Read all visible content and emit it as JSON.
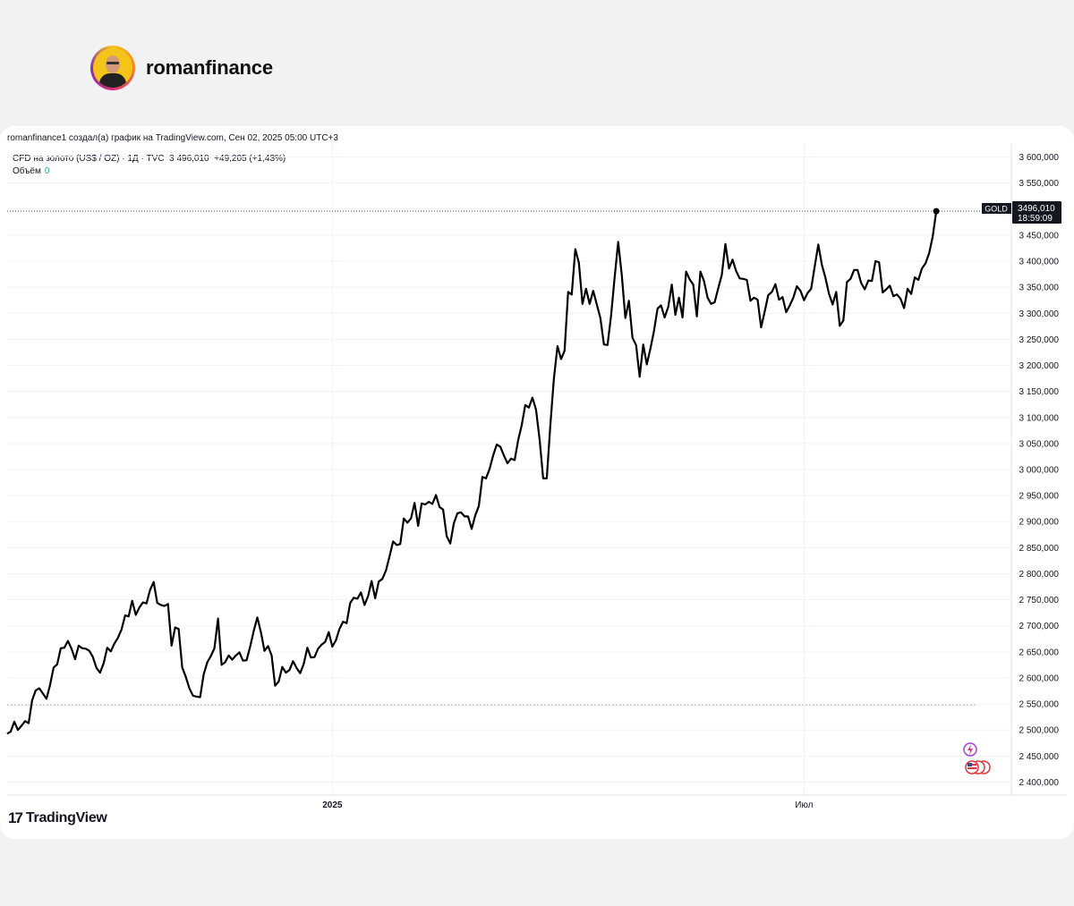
{
  "profile": {
    "name": "romanfinance"
  },
  "header": {
    "created_text": "romanfinance1 создал(а) график на TradingView.com, Сен 02, 2025 05:00 UTC+3",
    "symbol_line": "CFD на золото (US$ / OZ) · 1Д · TVC",
    "last_price": "3 496,010",
    "change": "+49,205 (+1,43%)",
    "volume_label": "Объём",
    "volume_value": "0"
  },
  "price_tag": {
    "symbol": "GOLD",
    "value": "3496,010",
    "countdown": "18:59:09"
  },
  "footer": {
    "logo_mark": "17",
    "logo_text": "TradingView"
  },
  "icons": [
    "flash-icon",
    "us-flag-icon"
  ],
  "colors": {
    "line": "#000000",
    "grid": "#f0f3fa",
    "text": "#131722",
    "ref_line": "#b2b5be",
    "volume": "#22ab94"
  },
  "chart_data": {
    "type": "line",
    "title": "CFD на золото (US$ / OZ)",
    "xlabel": "",
    "ylabel": "",
    "ylim": [
      2375000,
      3625000
    ],
    "y_ticks": [
      2400000,
      2450000,
      2500000,
      2550000,
      2600000,
      2650000,
      2700000,
      2750000,
      2800000,
      2850000,
      2900000,
      2950000,
      3000000,
      3050000,
      3100000,
      3150000,
      3200000,
      3250000,
      3300000,
      3350000,
      3400000,
      3450000,
      3500000,
      3550000,
      3600000
    ],
    "y_tick_labels": [
      "2 400,000",
      "2 450,000",
      "2 500,000",
      "2 550,000",
      "2 600,000",
      "2 650,000",
      "2 700,000",
      "2 750,000",
      "2 800,000",
      "2 850,000",
      "2 900,000",
      "2 950,000",
      "3 000,000",
      "3 050,000",
      "3 100,000",
      "3 150,000",
      "3 200,000",
      "3 250,000",
      "3 300,000",
      "3 350,000",
      "3 400,000",
      "3 450,000",
      "3 500,000",
      "3 550,000",
      "3 600,000"
    ],
    "x_range": [
      0,
      271
    ],
    "x_ticks": [
      {
        "x": 91,
        "label": "2025",
        "bold": true
      },
      {
        "x": 223,
        "label": "Июл",
        "bold": false
      }
    ],
    "reference_line": 2548000,
    "last_value": 3496010,
    "grid": true,
    "series": [
      {
        "values": [
          2493000,
          2497000,
          2516000,
          2500000,
          2508000,
          2517000,
          2513000,
          2557000,
          2576000,
          2580000,
          2570000,
          2560000,
          2586000,
          2620000,
          2626000,
          2657000,
          2658000,
          2671000,
          2656000,
          2636000,
          2662000,
          2657000,
          2656000,
          2652000,
          2640000,
          2619000,
          2610000,
          2628000,
          2658000,
          2651000,
          2666000,
          2677000,
          2693000,
          2720000,
          2718000,
          2748000,
          2721000,
          2735000,
          2745000,
          2743000,
          2769000,
          2784000,
          2744000,
          2740000,
          2738000,
          2742000,
          2662000,
          2697000,
          2694000,
          2620000,
          2602000,
          2580000,
          2566000,
          2564000,
          2563000,
          2607000,
          2630000,
          2642000,
          2657000,
          2714000,
          2625000,
          2630000,
          2643000,
          2635000,
          2643000,
          2649000,
          2633000,
          2634000,
          2660000,
          2690000,
          2716000,
          2688000,
          2652000,
          2661000,
          2643000,
          2585000,
          2593000,
          2621000,
          2610000,
          2615000,
          2632000,
          2619000,
          2609000,
          2627000,
          2658000,
          2639000,
          2640000,
          2656000,
          2664000,
          2669000,
          2688000,
          2660000,
          2672000,
          2694000,
          2708000,
          2705000,
          2744000,
          2754000,
          2752000,
          2764000,
          2740000,
          2757000,
          2786000,
          2753000,
          2785000,
          2790000,
          2806000,
          2833000,
          2862000,
          2855000,
          2857000,
          2906000,
          2898000,
          2906000,
          2936000,
          2892000,
          2935000,
          2933000,
          2938000,
          2934000,
          2951000,
          2928000,
          2923000,
          2872000,
          2858000,
          2897000,
          2916000,
          2918000,
          2910000,
          2910000,
          2886000,
          2912000,
          2930000,
          2986000,
          2983000,
          3001000,
          3027000,
          3048000,
          3044000,
          3027000,
          3012000,
          3021000,
          3018000,
          3056000,
          3085000,
          3124000,
          3119000,
          3138000,
          3115000,
          3058000,
          2983000,
          2983000,
          3085000,
          3175000,
          3237000,
          3212000,
          3228000,
          3341000,
          3336000,
          3423000,
          3397000,
          3318000,
          3347000,
          3318000,
          3343000,
          3317000,
          3291000,
          3240000,
          3239000,
          3296000,
          3368000,
          3437000,
          3374000,
          3291000,
          3324000,
          3253000,
          3239000,
          3178000,
          3240000,
          3202000,
          3232000,
          3266000,
          3309000,
          3315000,
          3292000,
          3312000,
          3355000,
          3297000,
          3330000,
          3292000,
          3380000,
          3365000,
          3355000,
          3294000,
          3380000,
          3362000,
          3330000,
          3318000,
          3321000,
          3348000,
          3374000,
          3433000,
          3386000,
          3403000,
          3381000,
          3367000,
          3366000,
          3364000,
          3324000,
          3330000,
          3326000,
          3273000,
          3303000,
          3335000,
          3341000,
          3356000,
          3326000,
          3331000,
          3302000,
          3315000,
          3330000,
          3352000,
          3343000,
          3325000,
          3339000,
          3347000,
          3390000,
          3432000,
          3393000,
          3368000,
          3337000,
          3317000,
          3341000,
          3276000,
          3286000,
          3360000,
          3366000,
          3383000,
          3383000,
          3358000,
          3346000,
          3363000,
          3362000,
          3400000,
          3398000,
          3340000,
          3346000,
          3353000,
          3333000,
          3336000,
          3328000,
          3310000,
          3347000,
          3337000,
          3369000,
          3364000,
          3386000,
          3396000,
          3415000,
          3447000,
          3496010
        ]
      }
    ]
  }
}
